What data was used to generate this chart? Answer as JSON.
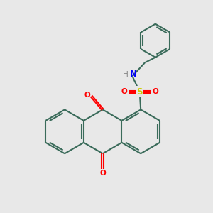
{
  "background_color": "#e8e8e8",
  "bond_color": "#3a6b5a",
  "oxygen_color": "#ff0000",
  "nitrogen_color": "#0000ff",
  "sulfur_color": "#cccc00",
  "hydrogen_color": "#808080",
  "bond_width": 1.5,
  "figsize": [
    3.0,
    3.0
  ],
  "dpi": 100,
  "xlim": [
    0,
    10
  ],
  "ylim": [
    0,
    10
  ]
}
